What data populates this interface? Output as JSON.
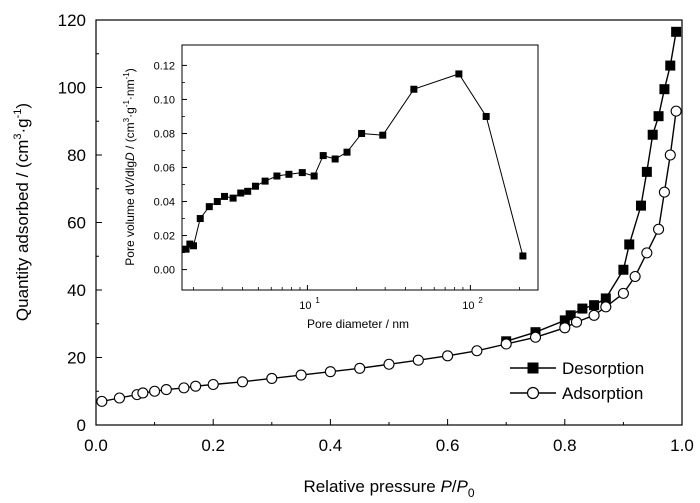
{
  "chart_data": [
    {
      "type": "line",
      "panel": "main",
      "xlabel_parts": [
        "Relative pressure ",
        "P",
        "/",
        "P",
        "0"
      ],
      "ylabel_parts": [
        "Quantity adsorbed / (cm",
        "3",
        "·g",
        "-1",
        ")"
      ],
      "xlim": [
        0,
        1.0
      ],
      "ylim": [
        0,
        120
      ],
      "x_ticks": [
        0,
        0.2,
        0.4,
        0.6,
        0.8,
        1.0
      ],
      "x_tick_labels": [
        "0.0",
        "0.2",
        "0.4",
        "0.6",
        "0.8",
        "1.0"
      ],
      "y_ticks": [
        0,
        20,
        40,
        60,
        80,
        100,
        120
      ],
      "y_tick_labels": [
        "0",
        "20",
        "40",
        "60",
        "80",
        "100",
        "120"
      ],
      "legend_position": "bottom-right",
      "series": [
        {
          "name": "Desorption",
          "marker": "filled-square",
          "x": [
            0.7,
            0.75,
            0.8,
            0.81,
            0.83,
            0.85,
            0.87,
            0.9,
            0.91,
            0.93,
            0.94,
            0.95,
            0.96,
            0.97,
            0.98,
            0.99
          ],
          "y": [
            24.8,
            27.5,
            31.0,
            32.5,
            34.5,
            35.5,
            37.5,
            46.0,
            53.5,
            65.0,
            75.0,
            86.0,
            91.5,
            99.5,
            106.5,
            116.5
          ]
        },
        {
          "name": "Adsorption",
          "marker": "open-circle",
          "x": [
            0.01,
            0.04,
            0.07,
            0.08,
            0.1,
            0.12,
            0.15,
            0.17,
            0.2,
            0.25,
            0.3,
            0.35,
            0.4,
            0.45,
            0.5,
            0.55,
            0.6,
            0.65,
            0.7,
            0.75,
            0.8,
            0.82,
            0.85,
            0.87,
            0.9,
            0.92,
            0.94,
            0.96,
            0.97,
            0.98,
            0.99
          ],
          "y": [
            7.0,
            8.0,
            9.0,
            9.5,
            10.0,
            10.5,
            11.0,
            11.5,
            12.0,
            12.8,
            13.8,
            14.8,
            15.8,
            16.8,
            18.0,
            19.2,
            20.5,
            22.0,
            24.0,
            26.0,
            28.8,
            30.5,
            32.5,
            35.0,
            39.0,
            44.0,
            51.0,
            58.0,
            69.0,
            80.0,
            93.0
          ]
        }
      ]
    },
    {
      "type": "line",
      "panel": "inset",
      "xscale": "log",
      "xlabel": "Pore diameter / nm",
      "ylabel_parts": [
        "Pore volume d",
        "V",
        "/dlg",
        "D",
        " / (cm",
        "3",
        "·g",
        "-1",
        "·nm",
        "-1",
        ")"
      ],
      "xlim": [
        1.7,
        260
      ],
      "ylim": [
        -0.012,
        0.132
      ],
      "x_ticks": [
        10,
        100
      ],
      "x_tick_labels_base": [
        "10",
        "10"
      ],
      "x_tick_labels_exp": [
        "1",
        "2"
      ],
      "y_ticks": [
        0.0,
        0.02,
        0.04,
        0.06,
        0.08,
        0.1,
        0.12
      ],
      "y_tick_labels": [
        "0.00",
        "0.02",
        "0.04",
        "0.06",
        "0.08",
        "0.10",
        "0.12"
      ],
      "series": [
        {
          "marker": "filled-square",
          "x": [
            1.8,
            1.9,
            2.0,
            2.2,
            2.5,
            2.8,
            3.1,
            3.5,
            3.9,
            4.3,
            4.8,
            5.5,
            6.5,
            7.7,
            9.3,
            11.0,
            12.5,
            14.8,
            17.5,
            21.5,
            29.0,
            45.0,
            85.0,
            125.0,
            210.0
          ],
          "y": [
            0.012,
            0.015,
            0.014,
            0.03,
            0.037,
            0.04,
            0.043,
            0.042,
            0.045,
            0.046,
            0.049,
            0.052,
            0.055,
            0.056,
            0.057,
            0.055,
            0.067,
            0.065,
            0.069,
            0.08,
            0.079,
            0.106,
            0.115,
            0.09,
            0.008
          ]
        }
      ]
    }
  ]
}
